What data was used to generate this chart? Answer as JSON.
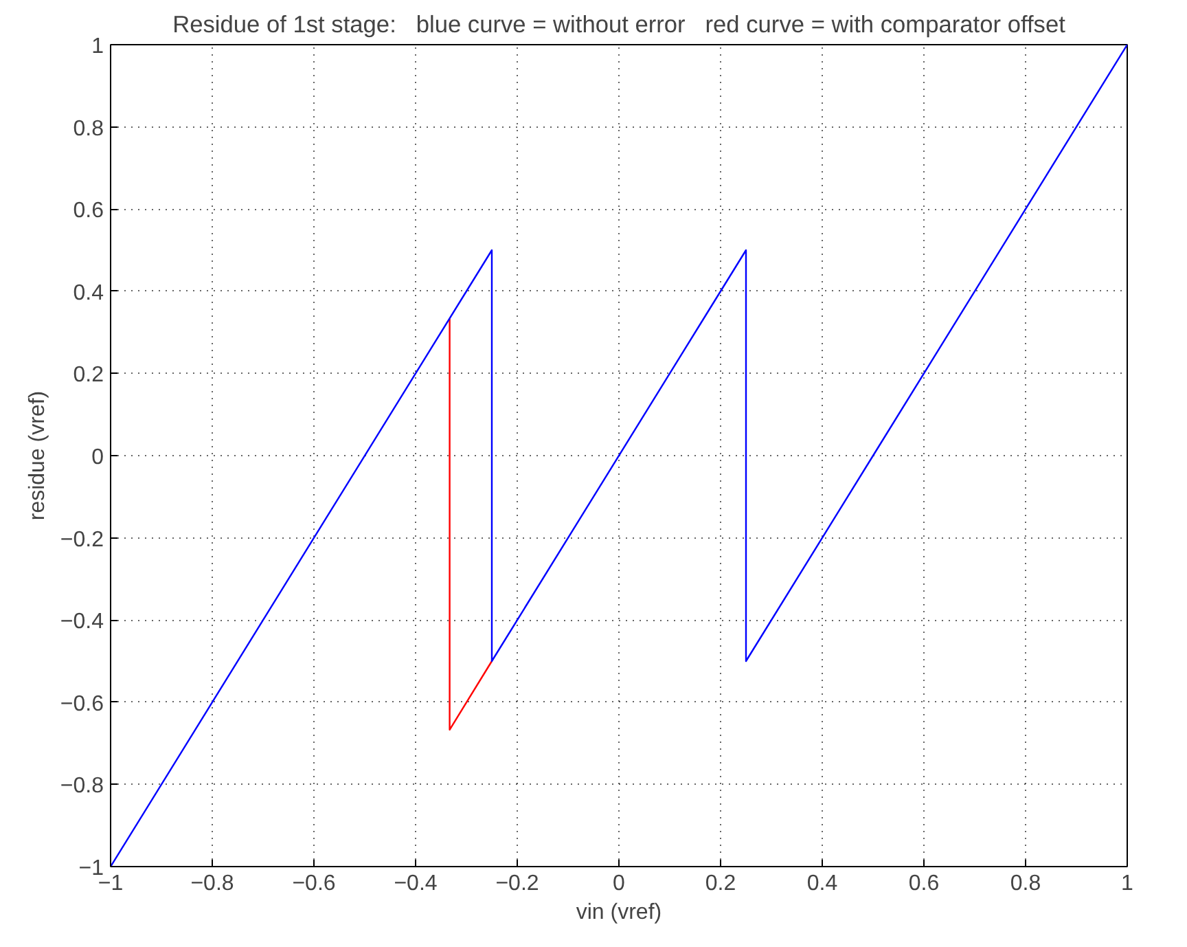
{
  "chart_data": {
    "type": "line",
    "title": "Residue of 1st stage:   blue curve = without error   red curve = with comparator offset",
    "xlabel": "vin (vref)",
    "ylabel": "residue (vref)",
    "series": [
      {
        "color": "#ff0000",
        "x": [
          -0.333,
          -0.333,
          -0.25
        ],
        "values": [
          0.333,
          -0.667,
          -0.5
        ]
      },
      {
        "color": "#0000ff",
        "x": [
          -1,
          -0.25,
          -0.25,
          0.25,
          0.25,
          1
        ],
        "values": [
          -1,
          0.5,
          -0.5,
          0.5,
          -0.5,
          1
        ]
      }
    ],
    "xlim": [
      -1,
      1
    ],
    "ylim": [
      -1,
      1
    ],
    "xticks": [
      {
        "value": -1,
        "label": "−1"
      },
      {
        "value": -0.8,
        "label": "−0.8"
      },
      {
        "value": -0.6,
        "label": "−0.6"
      },
      {
        "value": -0.4,
        "label": "−0.4"
      },
      {
        "value": -0.2,
        "label": "−0.2"
      },
      0,
      0.2,
      0.4,
      0.6,
      0.8,
      1
    ],
    "yticks": [
      {
        "value": -1,
        "label": "−1"
      },
      {
        "value": -0.8,
        "label": "−0.8"
      },
      {
        "value": -0.6,
        "label": "−0.6"
      },
      {
        "value": -0.4,
        "label": "−0.4"
      },
      {
        "value": -0.2,
        "label": "−0.2"
      },
      0,
      0.2,
      0.4,
      0.6,
      0.8,
      1
    ],
    "grid": true,
    "line_style": "solid"
  }
}
